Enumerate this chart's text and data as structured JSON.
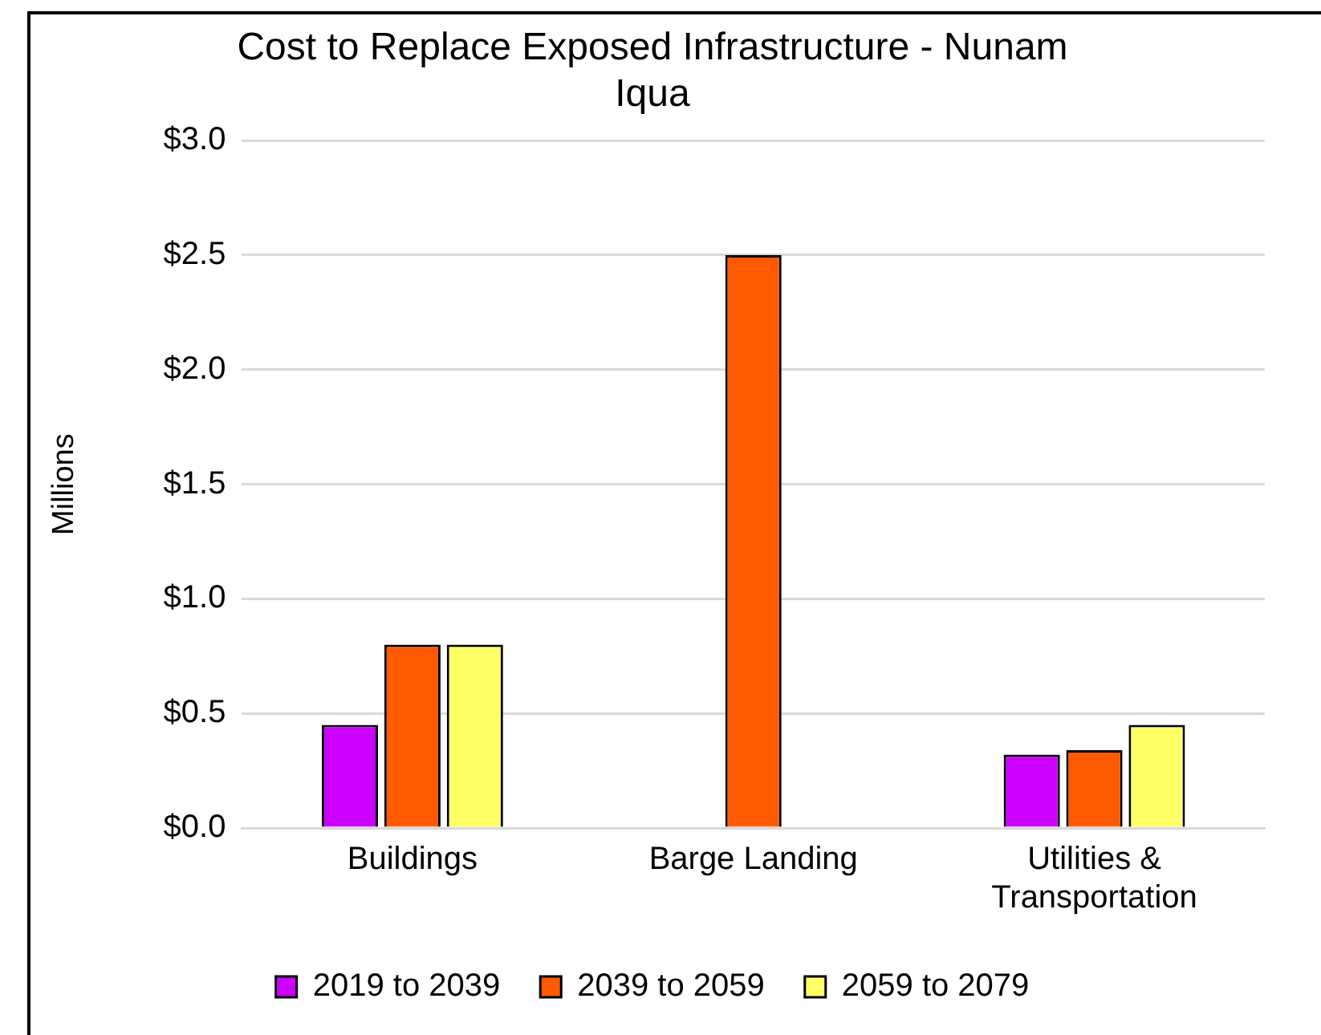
{
  "chart_data": {
    "type": "bar",
    "title": "Cost to Replace Exposed Infrastructure - Nunam Iqua",
    "ylabel": "Millions",
    "categories": [
      "Buildings",
      "Barge Landing",
      "Utilities & Transportation"
    ],
    "series": [
      {
        "name": "2019 to 2039",
        "color": "#cc00ff",
        "values": [
          0.45,
          0,
          0.32
        ]
      },
      {
        "name": "2039 to 2059",
        "color": "#ff5a00",
        "values": [
          0.8,
          2.5,
          0.34
        ]
      },
      {
        "name": "2059 to 2079",
        "color": "#ffff66",
        "values": [
          0.8,
          0,
          0.45
        ]
      }
    ],
    "ylim": [
      0,
      3
    ],
    "yticks": [
      {
        "value": 0,
        "label": "$0.0"
      },
      {
        "value": 0.5,
        "label": "$0.5"
      },
      {
        "value": 1,
        "label": "$1.0"
      },
      {
        "value": 1.5,
        "label": "$1.5"
      },
      {
        "value": 2,
        "label": "$2.0"
      },
      {
        "value": 2.5,
        "label": "$2.5"
      },
      {
        "value": 3,
        "label": "$3.0"
      }
    ],
    "grid": "y",
    "legend": "bottom"
  }
}
